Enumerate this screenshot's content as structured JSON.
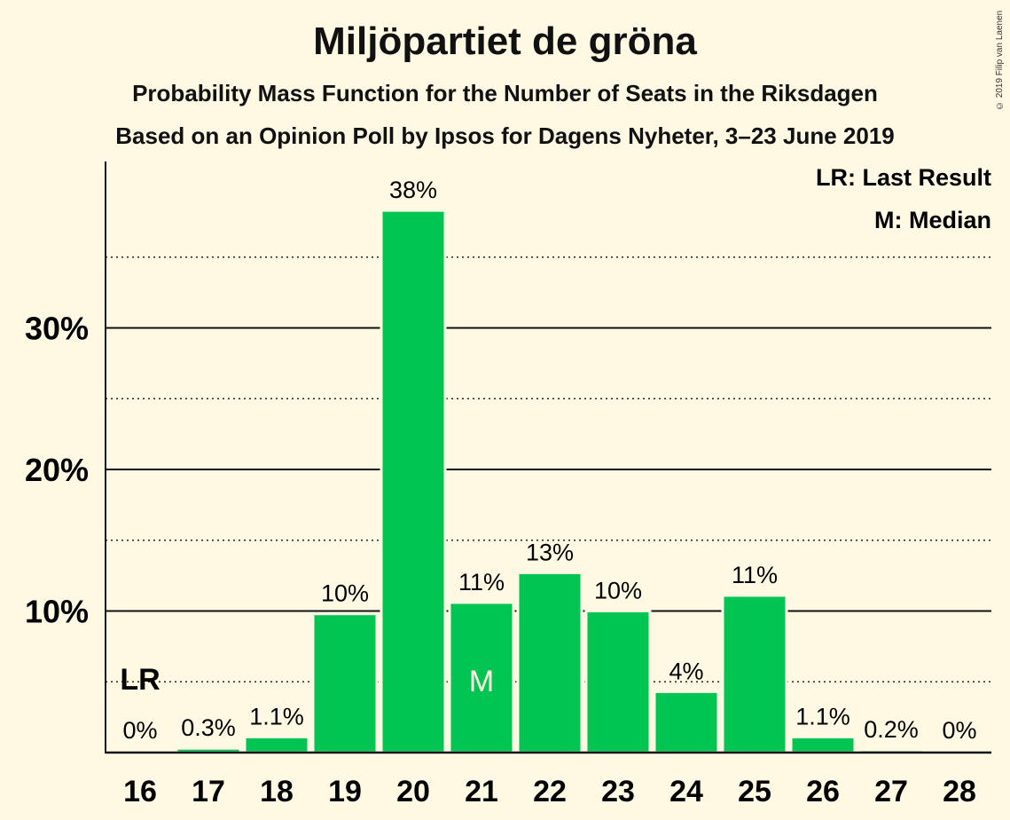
{
  "title": "Miljöpartiet de gröna",
  "subtitle": "Probability Mass Function for the Number of Seats in the Riksdagen",
  "subtitle2": "Based on an Opinion Poll by Ipsos for Dagens Nyheter, 3–23 June 2019",
  "copyright": "© 2019 Filip van Laenen",
  "legend": {
    "last_result": "LR: Last Result",
    "median": "M: Median"
  },
  "colors": {
    "bar": "#00c552",
    "background": "#fff9e3",
    "text": "#111111"
  },
  "chart_data": {
    "type": "bar",
    "categories": [
      "16",
      "17",
      "18",
      "19",
      "20",
      "21",
      "22",
      "23",
      "24",
      "25",
      "26",
      "27",
      "28"
    ],
    "values": [
      0,
      0.3,
      1.1,
      9.8,
      38.3,
      10.6,
      12.7,
      10.0,
      4.3,
      11.1,
      1.1,
      0.2,
      0
    ],
    "labels": [
      "0%",
      "0.3%",
      "1.1%",
      "10%",
      "38%",
      "11%",
      "13%",
      "10%",
      "4%",
      "11%",
      "1.1%",
      "0.2%",
      "0%"
    ],
    "ylim": [
      0,
      41.7
    ],
    "yticks": [
      {
        "value": 10,
        "label": "10%"
      },
      {
        "value": 20,
        "label": "20%"
      },
      {
        "value": 30,
        "label": "30%"
      }
    ],
    "minor_gridlines": [
      5,
      15,
      25,
      35
    ],
    "last_result_seat": "16",
    "last_result_label": "LR",
    "median_seat": "21",
    "median_label": "M",
    "xlabel": "",
    "ylabel": ""
  }
}
